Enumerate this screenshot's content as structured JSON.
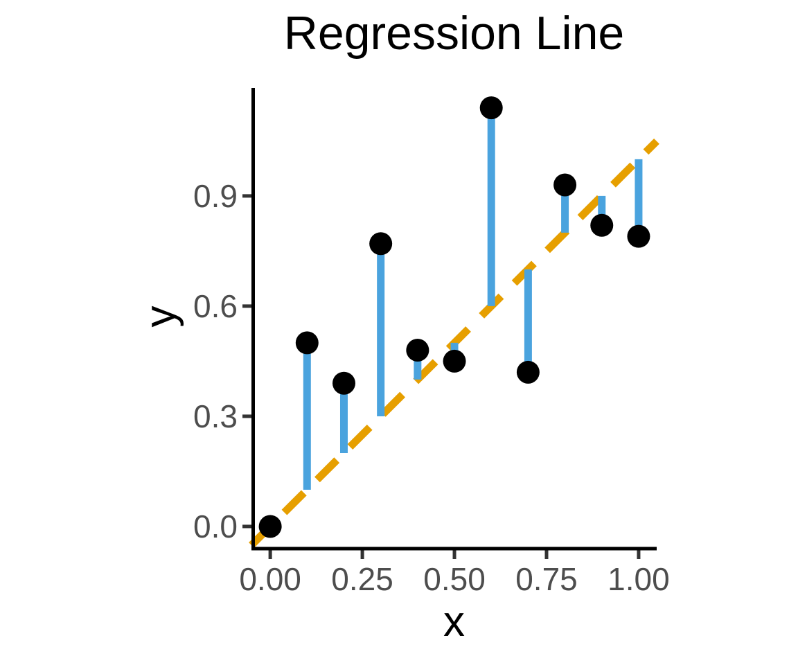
{
  "chart_data": {
    "type": "scatter",
    "title": "Regression Line",
    "xlabel": "x",
    "ylabel": "y",
    "points": {
      "x": [
        0.0,
        0.1,
        0.2,
        0.3,
        0.4,
        0.5,
        0.6,
        0.7,
        0.8,
        0.9,
        1.0
      ],
      "y": [
        0.0,
        0.5,
        0.39,
        0.77,
        0.48,
        0.45,
        1.14,
        0.42,
        0.93,
        0.82,
        0.79
      ]
    },
    "regression_line": {
      "equation": "y = x",
      "slope": 1,
      "intercept": 0,
      "line_style": "dashed",
      "color": "#E69F00"
    },
    "residuals": {
      "shown": true,
      "description": "vertical segments from each point to the regression line",
      "color": "#4AA3DE"
    },
    "point_color": "#000000",
    "point_radius": 16.5,
    "axes": {
      "xlim": [
        -0.051,
        1.049
      ],
      "ylim": [
        -0.0604,
        1.194
      ],
      "xticks": {
        "values": [
          0,
          0.25,
          0.5,
          0.75,
          1.0
        ],
        "labels": [
          "0.00",
          "0.25",
          "0.50",
          "0.75",
          "1.00"
        ]
      },
      "yticks": {
        "values": [
          0,
          0.3,
          0.6,
          0.9
        ],
        "labels": [
          "0.0",
          "0.3",
          "0.6",
          "0.9"
        ]
      },
      "grid": false,
      "axis_text_color": "#4D4D4D",
      "axis_line_color": "#000000",
      "tick_color": "#333333"
    },
    "legend": "none",
    "background": "#ffffff"
  }
}
